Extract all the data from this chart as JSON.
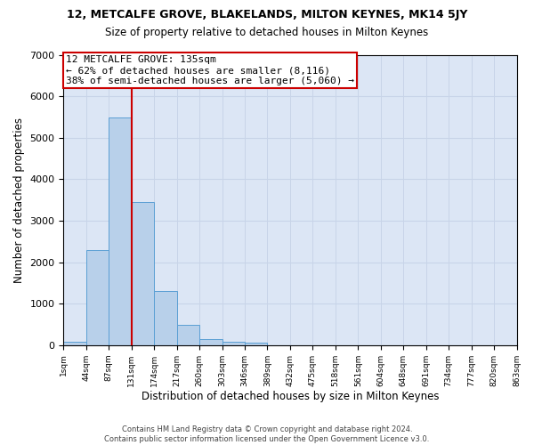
{
  "title": "12, METCALFE GROVE, BLAKELANDS, MILTON KEYNES, MK14 5JY",
  "subtitle": "Size of property relative to detached houses in Milton Keynes",
  "xlabel": "Distribution of detached houses by size in Milton Keynes",
  "ylabel": "Number of detached properties",
  "footer_line1": "Contains HM Land Registry data © Crown copyright and database right 2024.",
  "footer_line2": "Contains public sector information licensed under the Open Government Licence v3.0.",
  "bar_values": [
    80,
    2300,
    5480,
    3450,
    1310,
    480,
    155,
    80,
    55,
    0,
    0,
    0,
    0,
    0,
    0,
    0,
    0,
    0,
    0,
    0
  ],
  "bin_labels": [
    "1sqm",
    "44sqm",
    "87sqm",
    "131sqm",
    "174sqm",
    "217sqm",
    "260sqm",
    "303sqm",
    "346sqm",
    "389sqm",
    "432sqm",
    "475sqm",
    "518sqm",
    "561sqm",
    "604sqm",
    "648sqm",
    "691sqm",
    "734sqm",
    "777sqm",
    "820sqm",
    "863sqm"
  ],
  "bar_color": "#b8d0ea",
  "bar_edge_color": "#5a9fd4",
  "vline_color": "#cc0000",
  "vline_x": 2.5,
  "annotation_line1": "12 METCALFE GROVE: 135sqm",
  "annotation_line2": "← 62% of detached houses are smaller (8,116)",
  "annotation_line3": "38% of semi-detached houses are larger (5,060) →",
  "annotation_box_edgecolor": "#cc0000",
  "grid_color": "#c8d4e8",
  "bg_color": "#dce6f5",
  "ylim": [
    0,
    7000
  ],
  "yticks": [
    0,
    1000,
    2000,
    3000,
    4000,
    5000,
    6000,
    7000
  ],
  "title_fontsize": 9,
  "subtitle_fontsize": 8.5,
  "axis_label_fontsize": 8.5,
  "tick_fontsize": 8,
  "xtick_fontsize": 6.5,
  "footer_fontsize": 6
}
